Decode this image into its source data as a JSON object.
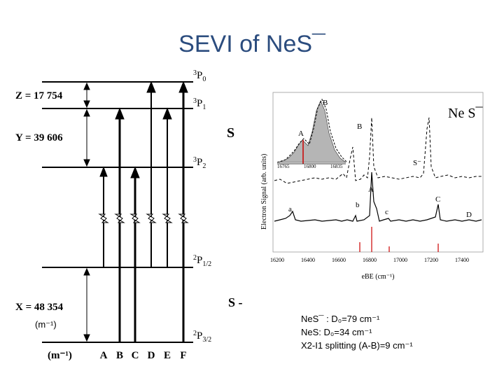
{
  "title": "SEVI of NeS¯",
  "level_diagram": {
    "levels": {
      "p0": {
        "sup": "3",
        "main": "P",
        "sub": "0"
      },
      "p1": {
        "sup": "3",
        "main": "P",
        "sub": "1"
      },
      "p2": {
        "sup": "3",
        "main": "P",
        "sub": "2"
      },
      "p12": {
        "sup": "2",
        "main": "P",
        "sub": "1/2"
      },
      "p32": {
        "sup": "2",
        "main": "P",
        "sub": "3/2"
      }
    },
    "energies": {
      "z": "Z = 17 754",
      "y": "Y = 39 606",
      "x": "X = 48 354"
    },
    "unit_left": "(m⁻¹)",
    "unit_bottom": "(m⁻¹)",
    "transition_labels": [
      "A",
      "B",
      "C",
      "D",
      "E",
      "F"
    ],
    "species_neutral": "S",
    "species_anion": "S -"
  },
  "spectrum": {
    "molecule_label": "Ne S¯",
    "ylabel": "Electron Signal (arb. units)",
    "xlabel": "eBE (cm⁻¹)",
    "xticks": [
      "16200",
      "16400",
      "16600",
      "16800",
      "17000",
      "17200",
      "17400"
    ],
    "inset_ticks": [
      "16765",
      "16800",
      "16835"
    ],
    "peak_labels": {
      "inset_a": "A",
      "inset_b": "B",
      "dash_b": "B",
      "s_minus": "S⁻",
      "a": "a",
      "b": "b",
      "A": "A",
      "c": "c",
      "C": "C",
      "D": "D"
    }
  },
  "notes": [
    "NeS¯ :  D₀=79 cm⁻¹",
    "NeS:  D₀=34 cm⁻¹",
    "X2-I1 splitting (A-B)=9 cm⁻¹"
  ]
}
